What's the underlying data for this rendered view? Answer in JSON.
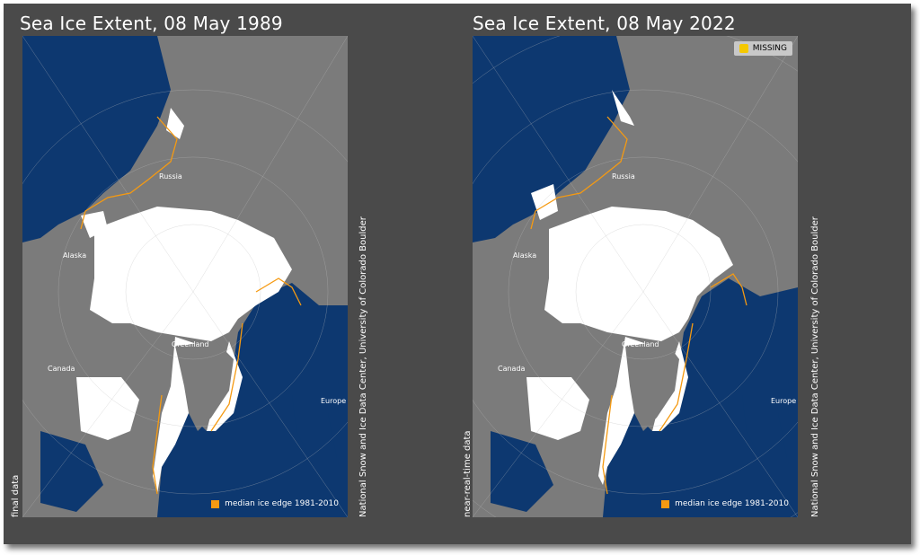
{
  "panels": [
    {
      "title": "Sea Ice Extent, 08 May 1989",
      "data_status": "final data",
      "credit": "National Snow and Ice Data Center, University of Colorado Boulder",
      "labels": {
        "russia": "Russia",
        "alaska": "Alaska",
        "canada": "Canada",
        "greenland": "Greenland",
        "europe": "Europe"
      },
      "legend": "median ice edge 1981-2010"
    },
    {
      "title": "Sea Ice Extent, 08 May 2022",
      "data_status": "near-real-time data",
      "credit": "National Snow and Ice Data Center, University of Colorado Boulder",
      "labels": {
        "russia": "Russia",
        "alaska": "Alaska",
        "canada": "Canada",
        "greenland": "Greenland",
        "europe": "Europe"
      },
      "legend": "median ice edge 1981-2010",
      "missing_label": "MISSING"
    }
  ],
  "colors": {
    "ocean": "#0d3870",
    "land": "#7b7b7b",
    "ice": "#ffffff",
    "median_edge": "#f59a12",
    "missing": "#f5c800",
    "background": "#4a4a4a"
  }
}
